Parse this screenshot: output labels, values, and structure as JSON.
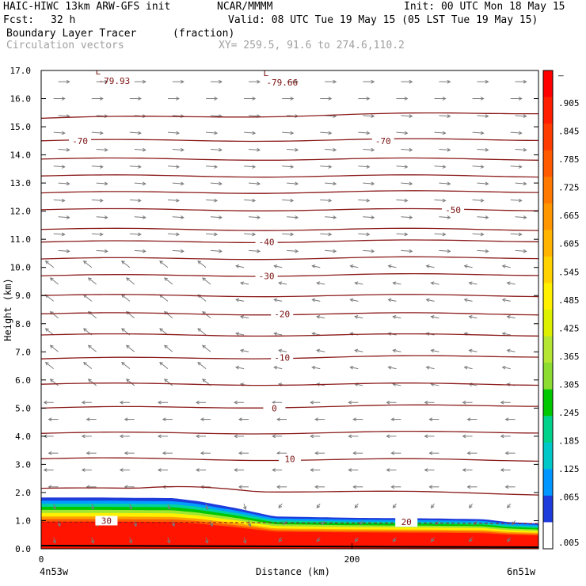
{
  "header": {
    "model": "HAIC-HIWC 13km ARW-GFS init",
    "org": "NCAR/MMMM",
    "init": "Init: 00 UTC Mon 18 May 15",
    "fcst_label": "Fcst:",
    "fcst_value": "32 h",
    "valid": "Valid: 08 UTC Tue 19 May 15 (05 LST Tue 19 May 15)",
    "field": "Boundary Layer Tracer",
    "field_unit": "(fraction)",
    "vectors": "Circulation vectors",
    "xy": "XY= 259.5, 91.6 to 274.6,110.2"
  },
  "chart_data": {
    "type": "heatmap",
    "xlabel": "Distance (km)",
    "ylabel": "Height (km)",
    "xlim": [
      0,
      320
    ],
    "ylim": [
      0,
      17
    ],
    "x_ticks": [
      0,
      200
    ],
    "x_tick_labels": [
      "0",
      "200"
    ],
    "x_end_labels": [
      "4n53w",
      "6n51w"
    ],
    "y_ticks": [
      "0.0",
      "1.0",
      "2.0",
      "3.0",
      "4.0",
      "5.0",
      "6.0",
      "7.0",
      "8.0",
      "9.0",
      "10.0",
      "11.0",
      "12.0",
      "13.0",
      "14.0",
      "15.0",
      "16.0",
      "17.0"
    ],
    "tracer_top_km": [
      [
        0,
        1.82
      ],
      [
        40,
        1.82
      ],
      [
        85,
        1.8
      ],
      [
        100,
        1.7
      ],
      [
        125,
        1.45
      ],
      [
        150,
        1.15
      ],
      [
        200,
        1.1
      ],
      [
        250,
        1.08
      ],
      [
        285,
        1.05
      ],
      [
        300,
        0.95
      ],
      [
        320,
        0.9
      ]
    ],
    "tracer_bands": [
      {
        "frac": 0.065,
        "color": "#1e3cdc"
      },
      {
        "frac": 0.125,
        "color": "#00a0ff"
      },
      {
        "frac": 0.185,
        "color": "#00d2a0"
      },
      {
        "frac": 0.245,
        "color": "#00c800"
      },
      {
        "frac": 0.365,
        "color": "#a0e632"
      },
      {
        "frac": 0.485,
        "color": "#fff000"
      },
      {
        "frac": 0.605,
        "color": "#ffa000"
      },
      {
        "frac": 0.785,
        "color": "#ff5a00"
      },
      {
        "frac": 1.0,
        "color": "#ff1400"
      }
    ],
    "temperature_contours": [
      {
        "label": "-70",
        "label_x": [
          25,
          220
        ]
      },
      {
        "label": "-50",
        "label_x": [
          265
        ]
      },
      {
        "label": "-40",
        "label_x": [
          145
        ]
      },
      {
        "label": "-30",
        "label_x": [
          145
        ]
      },
      {
        "label": "-20",
        "label_x": [
          155
        ]
      },
      {
        "label": "-10",
        "label_x": [
          155
        ]
      },
      {
        "label": "0",
        "label_x": [
          150
        ]
      },
      {
        "label": "10",
        "label_x": [
          160
        ]
      },
      {
        "label": "20",
        "label_x": [
          235
        ]
      },
      {
        "label": "30",
        "label_x": [
          42
        ]
      }
    ],
    "extremes": [
      {
        "label": "L",
        "value": "-79.93",
        "x": 40,
        "y": 16.8
      },
      {
        "label": "L",
        "value": "-79.66",
        "x": 148,
        "y": 16.75
      }
    ],
    "colorbar": {
      "labels": [
        "–",
        ".905",
        ".845",
        ".785",
        ".725",
        ".665",
        ".605",
        ".545",
        ".485",
        ".425",
        ".365",
        ".305",
        ".245",
        ".185",
        ".125",
        ".065",
        ".005"
      ],
      "colors": [
        "#ff0000",
        "#ff1e00",
        "#ff3c00",
        "#ff5a00",
        "#ff7800",
        "#ff9600",
        "#ffb400",
        "#ffd200",
        "#fff000",
        "#dcf000",
        "#b4e632",
        "#8cdc32",
        "#00c800",
        "#00d28c",
        "#00c8c8",
        "#0096ff",
        "#1e3cdc",
        "#ffffff"
      ]
    }
  }
}
